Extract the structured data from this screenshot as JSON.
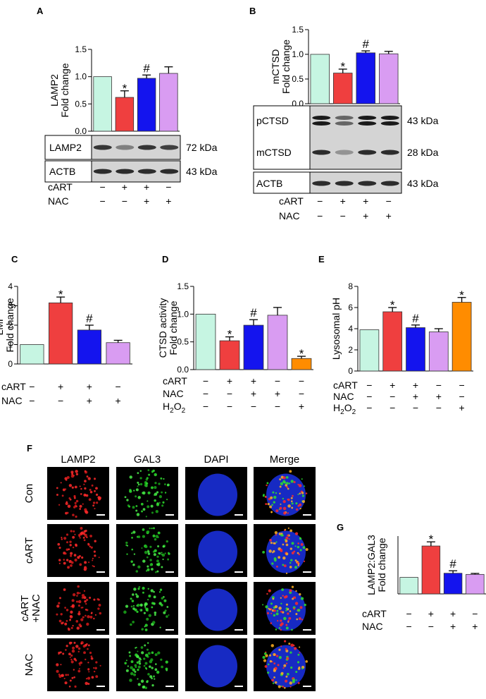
{
  "signs": {
    "plus": "+",
    "minus": "−"
  },
  "panels": {
    "A": "A",
    "B": "B",
    "C": "C",
    "D": "D",
    "E": "E",
    "F": "F",
    "G": "G"
  },
  "colors": {
    "con": "#c6f5e2",
    "cart": "#ef3f3f",
    "cart_nac": "#1414ee",
    "nac": "#d99cf2",
    "h2o2": "#ff8c00",
    "blot_bg": "#d4d4d4",
    "band": "#1a1a1a"
  },
  "blots": {
    "A": [
      {
        "label": "LAMP2",
        "size": "72 kDa",
        "intensity": [
          0.85,
          0.45,
          0.85,
          0.8
        ]
      },
      {
        "label": "ACTB",
        "size": "43 kDa",
        "intensity": [
          0.9,
          0.9,
          0.9,
          0.9
        ]
      }
    ],
    "B": [
      {
        "label": "pCTSD",
        "size": "43 kDa",
        "intensity": [
          1.0,
          0.6,
          1.0,
          1.0
        ]
      },
      {
        "label": "mCTSD",
        "size": "28 kDa",
        "intensity": [
          0.9,
          0.35,
          0.9,
          0.9
        ]
      },
      {
        "label": "ACTB",
        "size": "43 kDa",
        "intensity": [
          0.9,
          0.9,
          0.9,
          0.9
        ]
      }
    ]
  },
  "micro": {
    "columns": [
      "LAMP2",
      "GAL3",
      "DAPI",
      "Merge"
    ],
    "rows": [
      "Con",
      "cART",
      "cART\n+NAC",
      "NAC"
    ]
  },
  "chart_data": [
    {
      "panel": "A",
      "type": "bar",
      "ylabel": [
        "LAMP2",
        "Fold change"
      ],
      "ylim": [
        0,
        1.5
      ],
      "yticks": [
        "0.0",
        "0.5",
        "1.0",
        "1.5"
      ],
      "values": [
        1.0,
        0.62,
        0.97,
        1.06
      ],
      "errors": [
        0,
        0.12,
        0.06,
        0.12
      ],
      "annotations": [
        "",
        "*",
        "#",
        ""
      ],
      "treatments": [
        {
          "label": "cART",
          "signs": [
            "−",
            "+",
            "+",
            "−"
          ]
        },
        {
          "label": "NAC",
          "signs": [
            "−",
            "−",
            "+",
            "+"
          ]
        }
      ]
    },
    {
      "panel": "B",
      "type": "bar",
      "ylabel": [
        "mCTSD",
        "Fold change"
      ],
      "ylim": [
        0,
        1.5
      ],
      "yticks": [
        "0.0",
        "0.5",
        "1.0",
        "1.5"
      ],
      "values": [
        1.0,
        0.62,
        1.03,
        1.01
      ],
      "errors": [
        0,
        0.08,
        0.04,
        0.05
      ],
      "annotations": [
        "",
        "*",
        "#",
        ""
      ],
      "treatments": [
        {
          "label": "cART",
          "signs": [
            "−",
            "+",
            "+",
            "−"
          ]
        },
        {
          "label": "NAC",
          "signs": [
            "−",
            "−",
            "+",
            "+"
          ]
        }
      ]
    },
    {
      "panel": "C",
      "type": "bar",
      "ylabel": [
        "LMP",
        "Fold change"
      ],
      "ylim": [
        0,
        4
      ],
      "yticks": [
        "0",
        "1",
        "2",
        "3",
        "4"
      ],
      "values": [
        1.0,
        3.15,
        1.75,
        1.1
      ],
      "errors": [
        0,
        0.3,
        0.25,
        0.12
      ],
      "annotations": [
        "",
        "*",
        "#",
        ""
      ],
      "treatments": [
        {
          "label": "cART",
          "signs": [
            "−",
            "+",
            "+",
            "−"
          ]
        },
        {
          "label": "NAC",
          "signs": [
            "−",
            "−",
            "+",
            "+"
          ]
        }
      ]
    },
    {
      "panel": "D",
      "type": "bar",
      "ylabel": [
        "CTSD activity",
        "Fold change"
      ],
      "ylim": [
        0,
        1.5
      ],
      "yticks": [
        "0.0",
        "0.5",
        "1.0",
        "1.5"
      ],
      "values": [
        1.0,
        0.52,
        0.8,
        0.98,
        0.2
      ],
      "errors": [
        0,
        0.07,
        0.1,
        0.14,
        0.04
      ],
      "annotations": [
        "",
        "*",
        "#",
        "",
        "*"
      ],
      "treatments": [
        {
          "label": "cART",
          "signs": [
            "−",
            "+",
            "+",
            "−",
            "−"
          ]
        },
        {
          "label": "NAC",
          "signs": [
            "−",
            "−",
            "+",
            "+",
            "−"
          ]
        },
        {
          "label": "H2O2",
          "sub": true,
          "signs": [
            "−",
            "−",
            "−",
            "−",
            "+"
          ]
        }
      ]
    },
    {
      "panel": "E",
      "type": "bar",
      "ylabel": [
        "Lysosomal pH"
      ],
      "ylim": [
        0,
        8
      ],
      "yticks": [
        "0",
        "2",
        "4",
        "6",
        "8"
      ],
      "values": [
        3.9,
        5.6,
        4.1,
        3.7,
        6.5
      ],
      "errors": [
        0,
        0.4,
        0.25,
        0.3,
        0.45
      ],
      "annotations": [
        "",
        "*",
        "#",
        "",
        "*"
      ],
      "treatments": [
        {
          "label": "cART",
          "signs": [
            "−",
            "+",
            "+",
            "−",
            "−"
          ]
        },
        {
          "label": "NAC",
          "signs": [
            "−",
            "−",
            "+",
            "+",
            "−"
          ]
        },
        {
          "label": "H2O2",
          "sub": true,
          "signs": [
            "−",
            "−",
            "−",
            "−",
            "+"
          ]
        }
      ]
    },
    {
      "panel": "G",
      "type": "bar",
      "ylabel": [
        "LAMP2:GAL3",
        "Fold change"
      ],
      "ylim": [
        0,
        3.5
      ],
      "yticks": [],
      "values": [
        1.0,
        2.9,
        1.25,
        1.18
      ],
      "errors": [
        0,
        0.25,
        0.15,
        0.06
      ],
      "annotations": [
        "",
        "*",
        "#",
        ""
      ],
      "treatments": [
        {
          "label": "cART",
          "signs": [
            "−",
            "+",
            "+",
            "−"
          ]
        },
        {
          "label": "NAC",
          "signs": [
            "−",
            "−",
            "+",
            "+"
          ]
        }
      ]
    }
  ]
}
